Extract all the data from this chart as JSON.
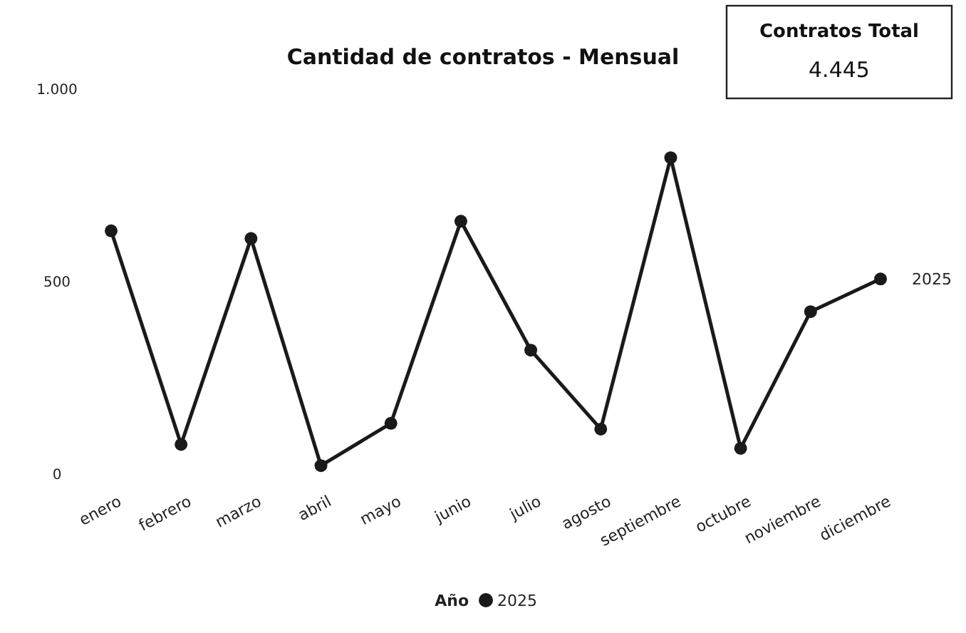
{
  "chart_data": [
    {
      "type": "line",
      "title": "Cantidad de contratos - Mensual",
      "categories": [
        "enero",
        "febrero",
        "marzo",
        "abril",
        "mayo",
        "junio",
        "julio",
        "agosto",
        "septiembre",
        "octubre",
        "noviembre",
        "diciembre"
      ],
      "series": [
        {
          "name": "2025",
          "color": "#1a1a1a",
          "values": [
            630,
            75,
            610,
            20,
            130,
            655,
            320,
            115,
            820,
            65,
            420,
            505
          ]
        }
      ],
      "ylim": [
        0,
        1000
      ],
      "yticks": [
        0,
        500,
        {
          "value": 1000,
          "label": "1.000"
        }
      ],
      "grid": false,
      "legend": "bottom",
      "legend_title": "Año",
      "marker": "circle",
      "line_style": "solid"
    },
    {
      "type": "other",
      "title": "Contratos Total",
      "annotations": [
        "4.445"
      ]
    }
  ]
}
